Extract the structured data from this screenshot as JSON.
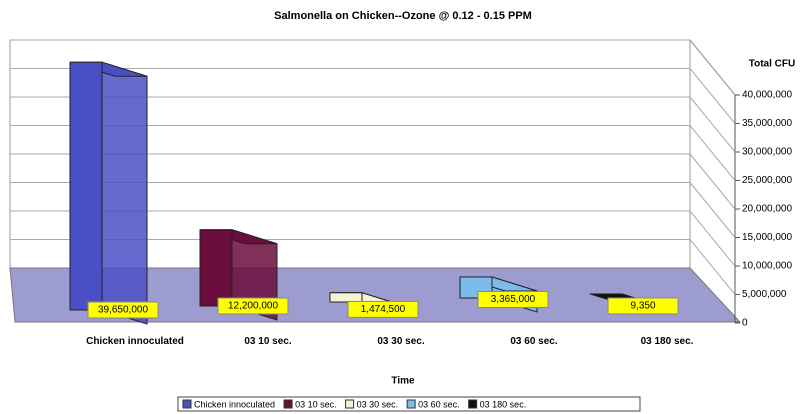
{
  "chart_data": {
    "type": "bar3d",
    "title": "Salmonella on Chicken--Ozone @ 0.12 - 0.15 PPM",
    "y_label": "Total CFU",
    "x_label": "Time",
    "categories": [
      "Chicken innoculated",
      "03 10 sec.",
      "03 30 sec.",
      "03 60 sec.",
      "03 180 sec."
    ],
    "values": [
      39650000,
      12200000,
      1474500,
      3365000,
      9350
    ],
    "value_labels": [
      "39,650,000",
      "12,200,000",
      "1,474,500",
      "3,365,000",
      "9,350"
    ],
    "colors": [
      "#4b4fc6",
      "#6a0c3c",
      "#f4f3d2",
      "#7cbbea",
      "#111111"
    ],
    "ylim": [
      0,
      40000000
    ],
    "yticks": [
      0,
      {
        "value": 5000000,
        "label": "5,000,000"
      },
      {
        "value": 10000000,
        "label": "10,000,000"
      },
      {
        "value": 15000000,
        "label": "15,000,000"
      },
      {
        "value": 20000000,
        "label": "20,000,000"
      },
      {
        "value": 25000000,
        "label": "25,000,000"
      },
      {
        "value": 30000000,
        "label": "30,000,000"
      },
      {
        "value": 35000000,
        "label": "35,000,000"
      },
      {
        "value": 40000000,
        "label": "40,000,000"
      }
    ],
    "grid": true,
    "legend": "bottom"
  }
}
